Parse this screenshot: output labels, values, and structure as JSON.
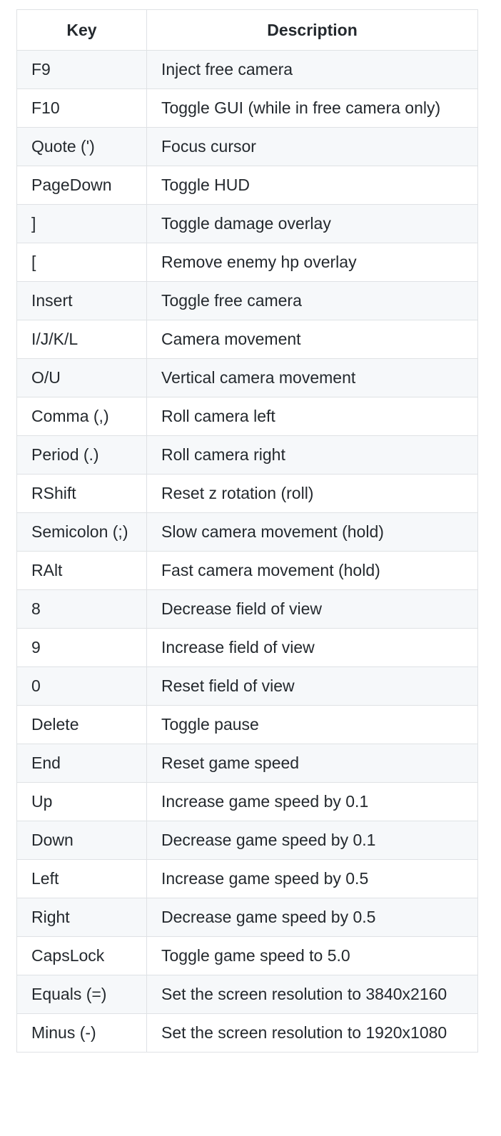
{
  "table": {
    "headers": {
      "key": "Key",
      "description": "Description"
    },
    "rows": [
      {
        "key": "F9",
        "description": "Inject free camera"
      },
      {
        "key": "F10",
        "description": "Toggle GUI (while in free camera only)"
      },
      {
        "key": "Quote (')",
        "description": "Focus cursor"
      },
      {
        "key": "PageDown",
        "description": "Toggle HUD"
      },
      {
        "key": "]",
        "description": "Toggle damage overlay"
      },
      {
        "key": "[",
        "description": "Remove enemy hp overlay"
      },
      {
        "key": "Insert",
        "description": "Toggle free camera"
      },
      {
        "key": "I/J/K/L",
        "description": "Camera movement"
      },
      {
        "key": "O/U",
        "description": "Vertical camera movement"
      },
      {
        "key": "Comma (,)",
        "description": "Roll camera left"
      },
      {
        "key": "Period (.)",
        "description": "Roll camera right"
      },
      {
        "key": "RShift",
        "description": "Reset z rotation (roll)"
      },
      {
        "key": "Semicolon (;)",
        "description": "Slow camera movement (hold)"
      },
      {
        "key": "RAlt",
        "description": "Fast camera movement (hold)"
      },
      {
        "key": "8",
        "description": "Decrease field of view"
      },
      {
        "key": "9",
        "description": "Increase field of view"
      },
      {
        "key": "0",
        "description": "Reset field of view"
      },
      {
        "key": "Delete",
        "description": "Toggle pause"
      },
      {
        "key": "End",
        "description": "Reset game speed"
      },
      {
        "key": "Up",
        "description": "Increase game speed by 0.1"
      },
      {
        "key": "Down",
        "description": "Decrease game speed by 0.1"
      },
      {
        "key": "Left",
        "description": "Increase game speed by 0.5"
      },
      {
        "key": "Right",
        "description": "Decrease game speed by 0.5"
      },
      {
        "key": "CapsLock",
        "description": "Toggle game speed to 5.0"
      },
      {
        "key": "Equals (=)",
        "description": "Set the screen resolution to 3840x2160"
      },
      {
        "key": "Minus (-)",
        "description": "Set the screen resolution to 1920x1080"
      }
    ]
  },
  "colors": {
    "border": "#dfe2e5",
    "row_alt": "#f6f8fa",
    "text": "#24292e"
  }
}
